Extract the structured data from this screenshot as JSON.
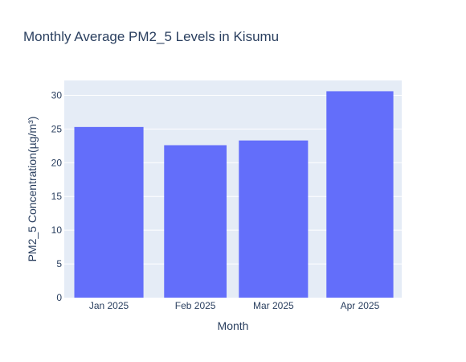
{
  "chart_data": {
    "type": "bar",
    "title": "Monthly Average PM2_5 Levels in Kisumu",
    "xlabel": "Month",
    "ylabel": "PM2_5 Concentration(µg/m³)",
    "x": [
      "2025-01-01",
      "2025-02-01",
      "2025-03-01",
      "2025-04-01"
    ],
    "categories": [
      "Jan 2025",
      "Feb 2025",
      "Mar 2025",
      "Apr 2025"
    ],
    "values": [
      25.3,
      22.6,
      23.3,
      30.6
    ],
    "ylim": [
      0,
      32.2
    ],
    "yticks": [
      0,
      5,
      10,
      15,
      20,
      25,
      30
    ],
    "grid": true,
    "colors": {
      "bar": "#636efa",
      "plot_bg": "#e5ecf6",
      "grid": "#ffffff",
      "text": "#2a3f5f"
    }
  }
}
